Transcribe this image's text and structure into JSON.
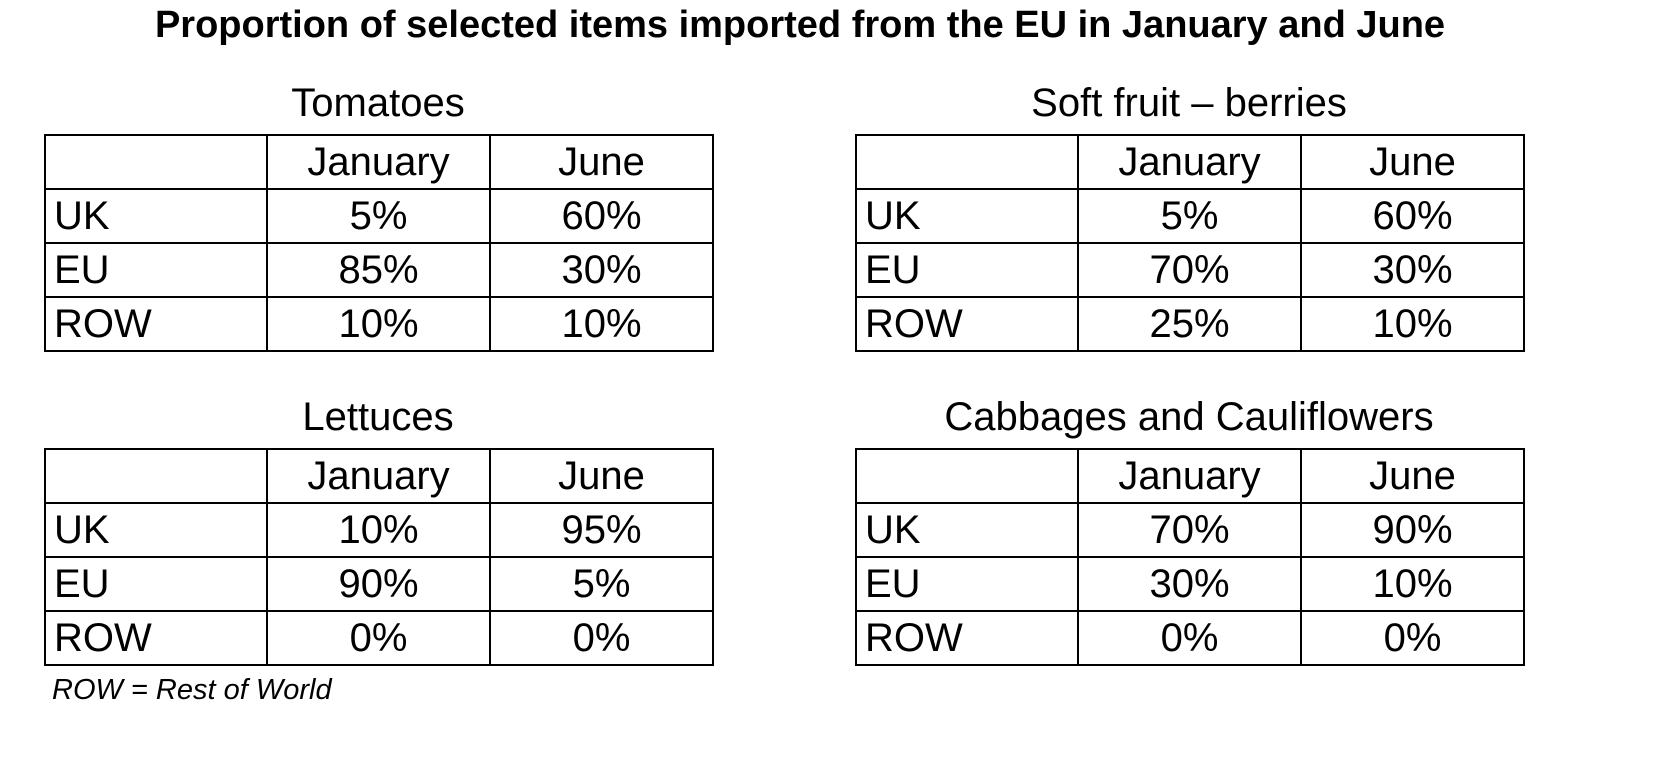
{
  "title": "Proportion of selected items imported from the EU in January and June",
  "footnote": "ROW = Rest of World",
  "chart_data": [
    {
      "type": "table",
      "title": "Tomatoes",
      "columns": [
        "",
        "January",
        "June"
      ],
      "rows": [
        {
          "label": "UK",
          "values": [
            "5%",
            "60%"
          ]
        },
        {
          "label": "EU",
          "values": [
            "85%",
            "30%"
          ]
        },
        {
          "label": "ROW",
          "values": [
            "10%",
            "10%"
          ]
        }
      ]
    },
    {
      "type": "table",
      "title": "Soft fruit – berries",
      "columns": [
        "",
        "January",
        "June"
      ],
      "rows": [
        {
          "label": "UK",
          "values": [
            "5%",
            "60%"
          ]
        },
        {
          "label": "EU",
          "values": [
            "70%",
            "30%"
          ]
        },
        {
          "label": "ROW",
          "values": [
            "25%",
            "10%"
          ]
        }
      ]
    },
    {
      "type": "table",
      "title": "Lettuces",
      "columns": [
        "",
        "January",
        "June"
      ],
      "rows": [
        {
          "label": "UK",
          "values": [
            "10%",
            "95%"
          ]
        },
        {
          "label": "EU",
          "values": [
            "90%",
            "5%"
          ]
        },
        {
          "label": "ROW",
          "values": [
            "0%",
            "0%"
          ]
        }
      ]
    },
    {
      "type": "table",
      "title": "Cabbages and Cauliflowers",
      "columns": [
        "",
        "January",
        "June"
      ],
      "rows": [
        {
          "label": "UK",
          "values": [
            "70%",
            "90%"
          ]
        },
        {
          "label": "EU",
          "values": [
            "30%",
            "10%"
          ]
        },
        {
          "label": "ROW",
          "values": [
            "0%",
            "0%"
          ]
        }
      ]
    }
  ]
}
